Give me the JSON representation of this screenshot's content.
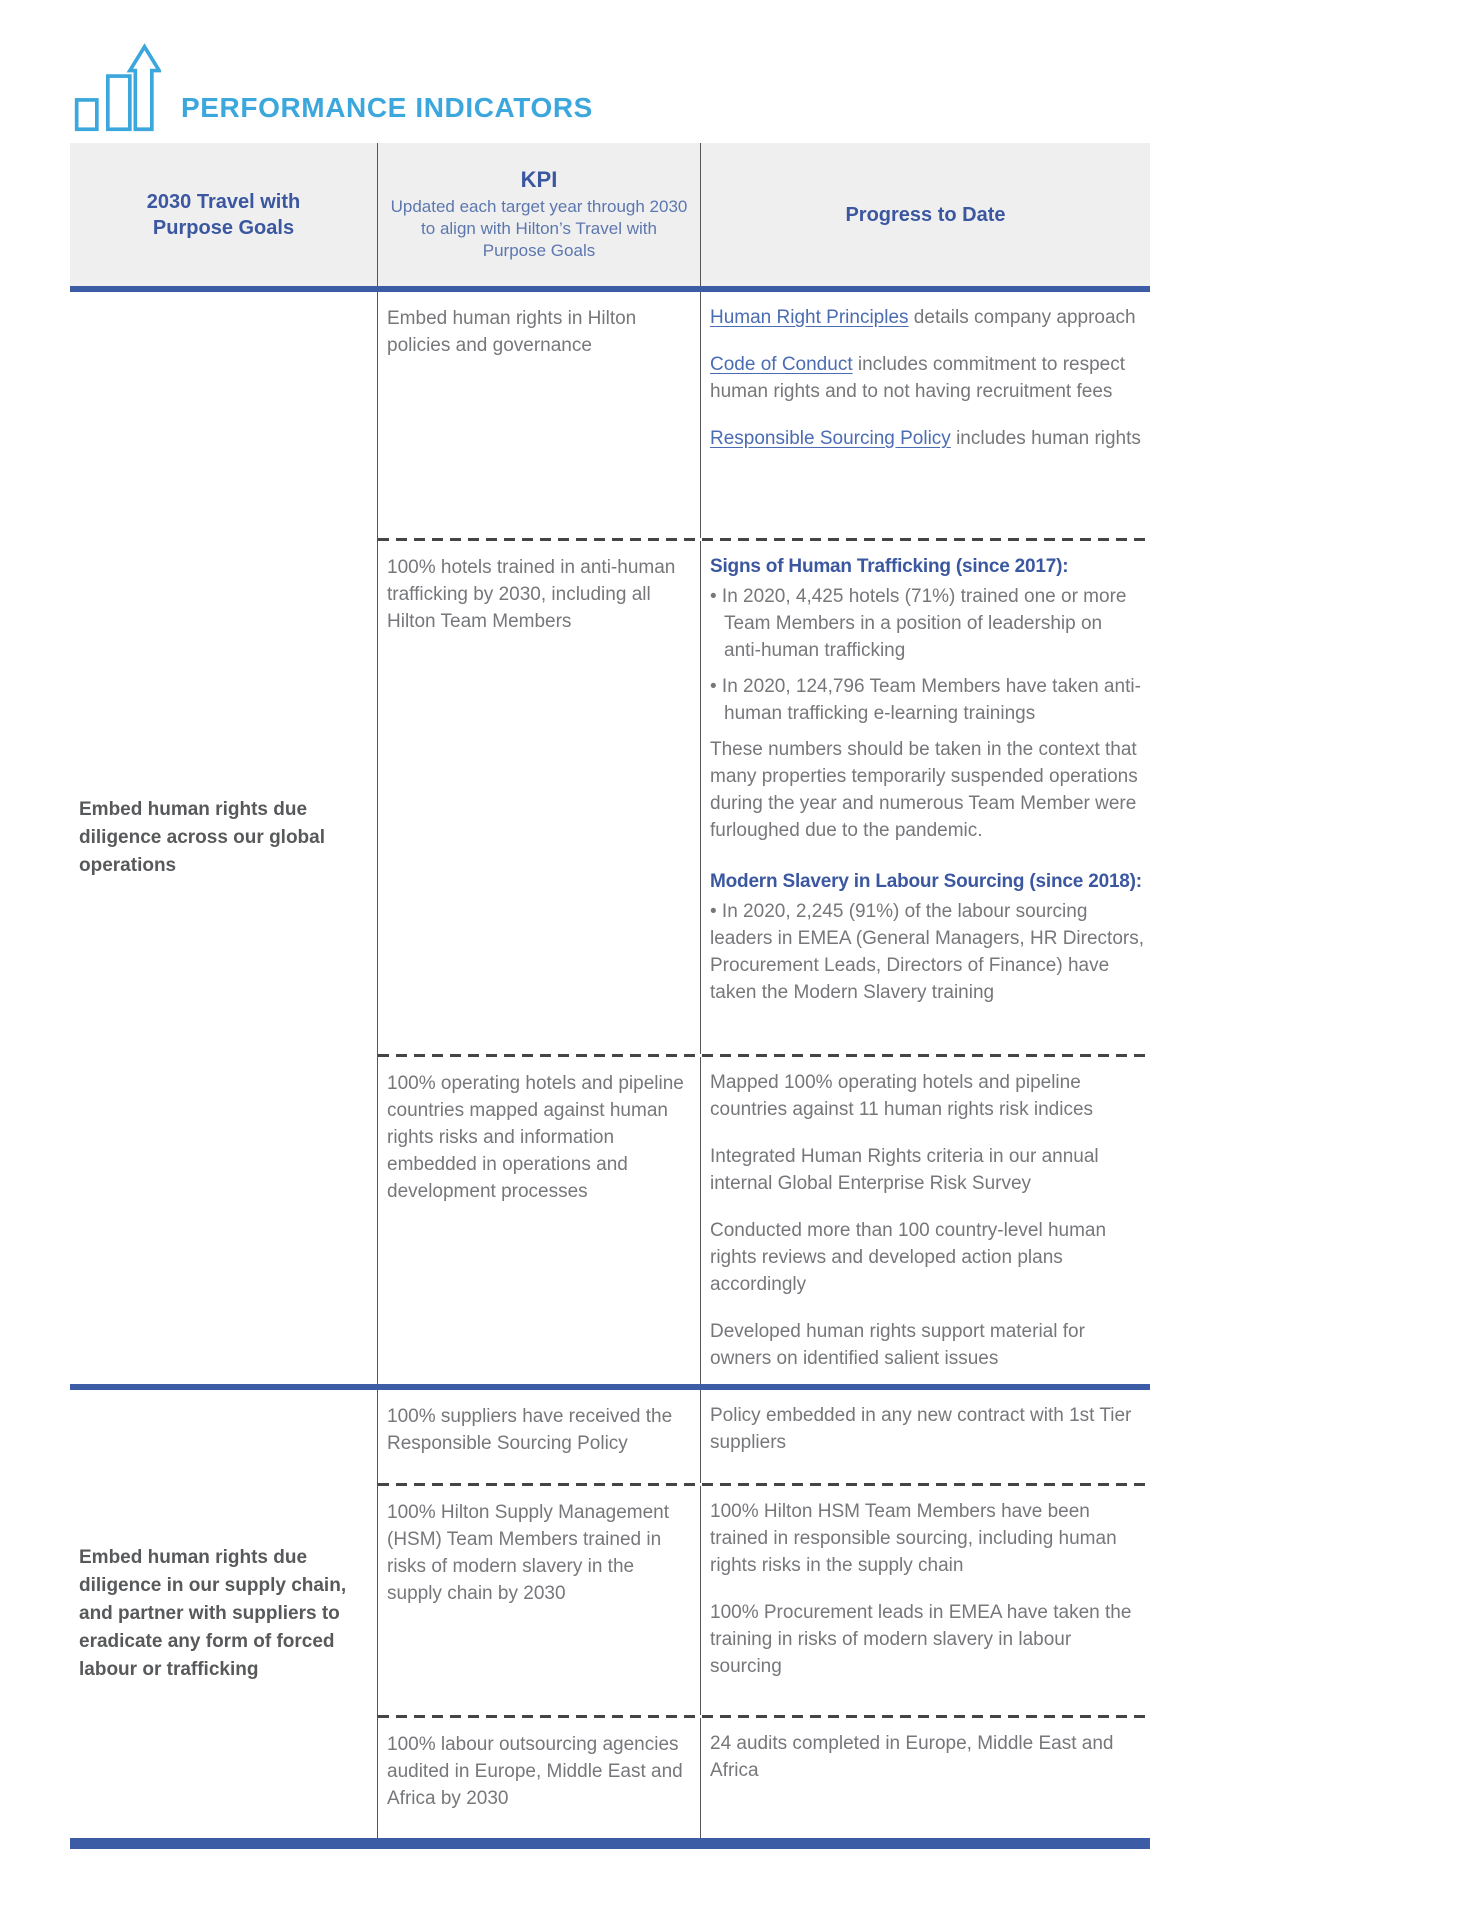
{
  "header": {
    "title": "PERFORMANCE INDICATORS",
    "icon": "bar-chart-growth-arrow-icon"
  },
  "colors": {
    "accent": "#3BA7DC",
    "headblue": "#3A57A0",
    "subhead": "#5C77AE",
    "blueline": "#3D5CA6",
    "body": "#76777A",
    "goal": "#58595B",
    "link": "#4A6CB3",
    "rule": "#55565A",
    "dash": "#454548",
    "headerbg": "#EFEFF0"
  },
  "table": {
    "columns": {
      "goals": "2030 Travel with Purpose Goals",
      "kpi_title": "KPI",
      "kpi_subtitle": "Updated each target year through 2030 to align with Hilton’s Travel with Purpose Goals",
      "progress": "Progress to Date"
    },
    "groups": [
      {
        "goal": "Embed human rights due diligence across our global operations",
        "rows": [
          {
            "kpi": "Embed human rights in Hilton policies and governance",
            "progress": [
              {
                "type": "p",
                "link": "Human Right Principles",
                "text": " details company approach"
              },
              {
                "type": "p",
                "link": "Code of Conduct",
                "text": " includes commitment to respect human rights and to not having recruitment fees"
              },
              {
                "type": "p",
                "link": "Responsible Sourcing Policy",
                "text": " includes human rights"
              }
            ]
          },
          {
            "kpi": "100% hotels trained in anti-human trafficking by 2030, including all Hilton Team Members",
            "progress": [
              {
                "type": "h",
                "text": "Signs of Human Trafficking (since 2017):"
              },
              {
                "type": "bullet",
                "text": "In 2020, 4,425 hotels (71%) trained one or more Team Members in a position of leadership on anti-human trafficking"
              },
              {
                "type": "bullet",
                "text": "In 2020, 124,796 Team Members have taken anti-human trafficking e-learning trainings"
              },
              {
                "type": "p",
                "text": "These numbers should be taken in the context that many properties temporarily suspended operations during the year and numerous Team Member were furloughed due to the pandemic."
              },
              {
                "type": "h",
                "text": "Modern Slavery in Labour Sourcing (since 2018):"
              },
              {
                "type": "bullet-flush",
                "text": "In 2020, 2,245 (91%) of the labour sourcing leaders in EMEA (General Managers, HR Directors, Procurement Leads, Directors of Finance) have taken the Modern Slavery training"
              }
            ]
          },
          {
            "kpi": "100% operating hotels and pipeline countries mapped against human rights risks and information embedded in operations and development processes",
            "progress": [
              {
                "type": "p",
                "text": "Mapped 100% operating hotels and pipeline countries against 11 human rights risk indices"
              },
              {
                "type": "p",
                "text": "Integrated Human Rights criteria in our annual internal Global Enterprise Risk Survey"
              },
              {
                "type": "p",
                "text": "Conducted more than 100 country-level human rights reviews and developed action plans accordingly"
              },
              {
                "type": "p",
                "text": "Developed human rights support material for owners on identified salient issues"
              }
            ]
          }
        ]
      },
      {
        "goal": "Embed human rights due diligence in our supply chain, and partner with suppliers to eradicate any form of forced labour or trafficking",
        "rows": [
          {
            "kpi": "100% suppliers have received the Responsible Sourcing Policy",
            "progress": [
              {
                "type": "p",
                "text": "Policy embedded in any new contract with 1st Tier suppliers"
              }
            ]
          },
          {
            "kpi": "100% Hilton Supply Management (HSM) Team Members trained in risks of modern slavery in the supply chain by 2030",
            "progress": [
              {
                "type": "p",
                "text": "100% Hilton HSM Team Members have been trained in responsible sourcing, including human rights risks in the supply chain"
              },
              {
                "type": "p",
                "text": "100% Procurement leads in EMEA have taken the training in risks of modern slavery in labour sourcing"
              }
            ]
          },
          {
            "kpi": "100% labour outsourcing agencies audited in Europe, Middle East and Africa by 2030",
            "progress": [
              {
                "type": "p",
                "text": "24 audits completed in Europe, Middle East and Africa"
              }
            ]
          }
        ]
      }
    ]
  }
}
